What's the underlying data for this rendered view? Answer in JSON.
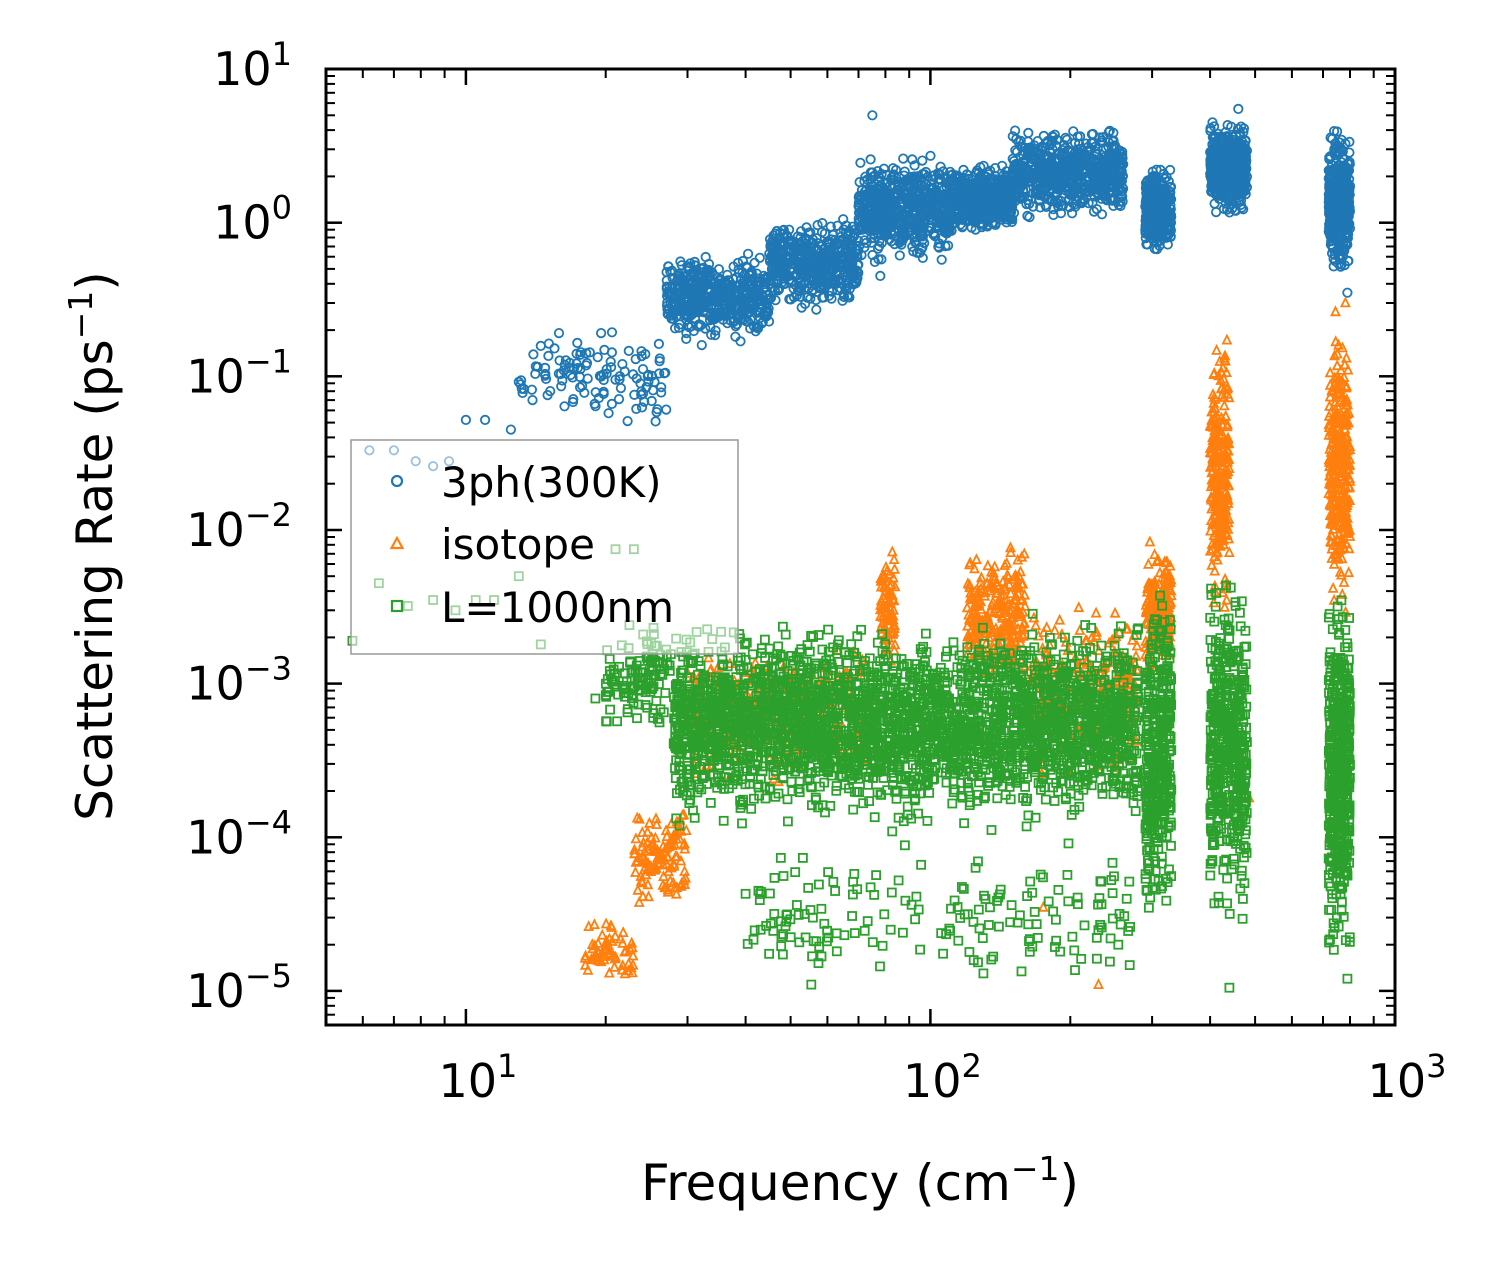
{
  "chart_data": {
    "type": "scatter",
    "title": "",
    "xlabel": "Frequency",
    "xlabel_unit_base": "cm",
    "xlabel_unit_exp": "−1",
    "ylabel": "Scattering Rate",
    "ylabel_unit_base": "ps",
    "ylabel_unit_exp": "−1",
    "xscale": "log",
    "yscale": "log",
    "xlim": [
      5,
      1000
    ],
    "ylim": [
      6e-06,
      10
    ],
    "x_ticks": [
      {
        "value": 10,
        "base": "10",
        "exp": "1"
      },
      {
        "value": 100,
        "base": "10",
        "exp": "2"
      },
      {
        "value": 1000,
        "base": "10",
        "exp": "3"
      }
    ],
    "y_ticks": [
      {
        "value": 10,
        "base": "10",
        "exp": "1"
      },
      {
        "value": 1,
        "base": "10",
        "exp": "0"
      },
      {
        "value": 0.1,
        "base": "10",
        "exp": "−1"
      },
      {
        "value": 0.01,
        "base": "10",
        "exp": "−2"
      },
      {
        "value": 0.001,
        "base": "10",
        "exp": "−3"
      },
      {
        "value": 0.0001,
        "base": "10",
        "exp": "−4"
      },
      {
        "value": 1e-05,
        "base": "10",
        "exp": "−5"
      }
    ],
    "grid": false,
    "legend_position": "center-left",
    "series": [
      {
        "name": "3ph(300K)",
        "marker": "circle",
        "color": "#1f77b4",
        "bands": [
          {
            "x": [
              13,
              27
            ],
            "y": [
              0.04,
              0.25
            ],
            "n": 120
          },
          {
            "x": [
              27,
              45
            ],
            "y": [
              0.15,
              0.7
            ],
            "n": 500
          },
          {
            "x": [
              45,
              70
            ],
            "y": [
              0.25,
              1.2
            ],
            "n": 500
          },
          {
            "x": [
              70,
              110
            ],
            "y": [
              0.5,
              3.0
            ],
            "n": 600
          },
          {
            "x": [
              110,
              150
            ],
            "y": [
              0.8,
              2.5
            ],
            "n": 500
          },
          {
            "x": [
              150,
              260
            ],
            "y": [
              1.0,
              4.5
            ],
            "n": 700
          },
          {
            "x": [
              290,
              330
            ],
            "y": [
              0.6,
              2.5
            ],
            "n": 350
          },
          {
            "x": [
              400,
              480
            ],
            "y": [
              1.0,
              5.0
            ],
            "n": 500
          },
          {
            "x": [
              720,
              800
            ],
            "y": [
              0.4,
              4.5
            ],
            "n": 500
          }
        ],
        "points": [
          {
            "x": 6.2,
            "y": 0.033
          },
          {
            "x": 7.0,
            "y": 0.033
          },
          {
            "x": 7.8,
            "y": 0.028
          },
          {
            "x": 8.5,
            "y": 0.026
          },
          {
            "x": 9.2,
            "y": 0.028
          },
          {
            "x": 10.0,
            "y": 0.052
          },
          {
            "x": 11.0,
            "y": 0.052
          },
          {
            "x": 12.5,
            "y": 0.045
          },
          {
            "x": 75,
            "y": 5.0
          },
          {
            "x": 78,
            "y": 0.45
          },
          {
            "x": 460,
            "y": 5.5
          },
          {
            "x": 790,
            "y": 0.35
          }
        ]
      },
      {
        "name": "isotope",
        "marker": "triangle",
        "color": "#ff7f0e",
        "bands": [
          {
            "x": [
              18,
              23
            ],
            "y": [
              1e-05,
              3e-05
            ],
            "n": 60
          },
          {
            "x": [
              23,
              30
            ],
            "y": [
              3e-05,
              0.0002
            ],
            "n": 120
          },
          {
            "x": [
              30,
              75
            ],
            "y": [
              0.0002,
              0.002
            ],
            "n": 400
          },
          {
            "x": [
              78,
              84
            ],
            "y": [
              0.001,
              0.009
            ],
            "n": 80
          },
          {
            "x": [
              120,
              160
            ],
            "y": [
              0.0008,
              0.009
            ],
            "n": 250
          },
          {
            "x": [
              165,
              280
            ],
            "y": [
              0.0002,
              0.004
            ],
            "n": 300
          },
          {
            "x": [
              290,
              330
            ],
            "y": [
              0.001,
              0.009
            ],
            "n": 200
          },
          {
            "x": [
              400,
              440
            ],
            "y": [
              0.002,
              0.25
            ],
            "n": 260
          },
          {
            "x": [
              720,
              800
            ],
            "y": [
              0.002,
              0.35
            ],
            "n": 300
          }
        ],
        "points": [
          {
            "x": 230,
            "y": 1.1e-05
          },
          {
            "x": 175,
            "y": 3.5e-05
          },
          {
            "x": 485,
            "y": 0.00018
          }
        ]
      },
      {
        "name": "L=1000nm",
        "marker": "square",
        "color": "#2ca02c",
        "bands": [
          {
            "x": [
              20,
              28
            ],
            "y": [
              0.0004,
              0.003
            ],
            "n": 120
          },
          {
            "x": [
              28,
              280
            ],
            "y": [
              0.0001,
              0.003
            ],
            "n": 3000
          },
          {
            "x": [
              40,
              270
            ],
            "y": [
              1e-05,
              0.0001
            ],
            "n": 180
          },
          {
            "x": [
              290,
              330
            ],
            "y": [
              2e-05,
              0.006
            ],
            "n": 400
          },
          {
            "x": [
              400,
              480
            ],
            "y": [
              2e-05,
              0.008
            ],
            "n": 500
          },
          {
            "x": [
              720,
              800
            ],
            "y": [
              1e-05,
              0.006
            ],
            "n": 500
          }
        ],
        "points": [
          {
            "x": 5.7,
            "y": 0.0019
          },
          {
            "x": 6.5,
            "y": 0.0045
          },
          {
            "x": 7.5,
            "y": 0.0032
          },
          {
            "x": 8.5,
            "y": 0.0035
          },
          {
            "x": 9.5,
            "y": 0.003
          },
          {
            "x": 10.5,
            "y": 0.0035
          },
          {
            "x": 11.5,
            "y": 0.0035
          },
          {
            "x": 13.0,
            "y": 0.005
          },
          {
            "x": 14.5,
            "y": 0.0018
          },
          {
            "x": 19.0,
            "y": 0.0008
          },
          {
            "x": 21.0,
            "y": 0.0075
          },
          {
            "x": 23.0,
            "y": 0.0075
          },
          {
            "x": 130,
            "y": 1.3e-05
          },
          {
            "x": 440,
            "y": 1.05e-05
          },
          {
            "x": 790,
            "y": 1.2e-05
          }
        ]
      }
    ]
  }
}
